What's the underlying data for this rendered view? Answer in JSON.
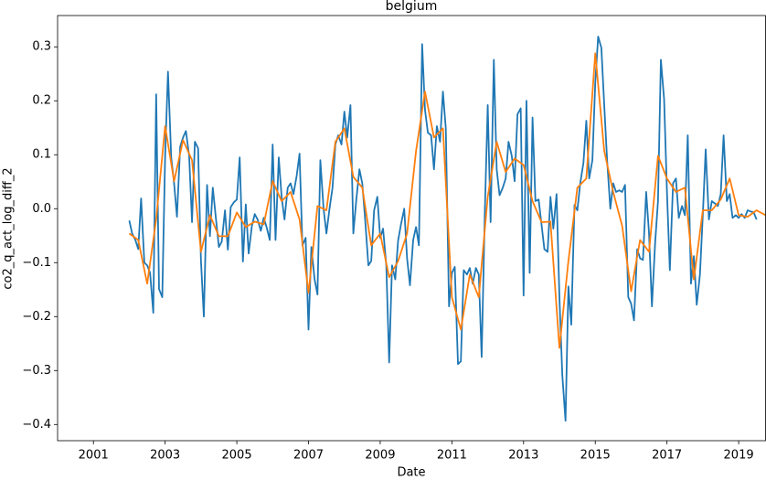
{
  "chart_data": {
    "type": "line",
    "title": "belgium",
    "x_label": "Date",
    "y_label": "co2_q_act_log_diff_2",
    "xlim": [
      2000,
      2019.75
    ],
    "ylim": [
      -0.43,
      0.358
    ],
    "xticks": [
      2001,
      2003,
      2005,
      2007,
      2009,
      2011,
      2013,
      2015,
      2017,
      2019
    ],
    "yticks": [
      {
        "value": -0.4,
        "label": "−0.4"
      },
      {
        "value": -0.3,
        "label": "−0.3"
      },
      {
        "value": -0.2,
        "label": "−0.2"
      },
      {
        "value": -0.1,
        "label": "−0.1"
      },
      {
        "value": 0.0,
        "label": "0.0"
      },
      0.1,
      0.2,
      0.3
    ],
    "grid": false,
    "series": [
      {
        "color": "#1f77b4",
        "x": [
          2002,
          2002.08,
          2002.17,
          2002.25,
          2002.33,
          2002.42,
          2002.5,
          2002.58,
          2002.67,
          2002.75,
          2002.83,
          2002.92,
          2003,
          2003.08,
          2003.17,
          2003.25,
          2003.33,
          2003.42,
          2003.5,
          2003.58,
          2003.67,
          2003.75,
          2003.83,
          2003.92,
          2004,
          2004.08,
          2004.17,
          2004.25,
          2004.33,
          2004.42,
          2004.5,
          2004.58,
          2004.67,
          2004.75,
          2004.83,
          2004.92,
          2005,
          2005.08,
          2005.17,
          2005.25,
          2005.33,
          2005.42,
          2005.5,
          2005.58,
          2005.67,
          2005.75,
          2005.83,
          2005.92,
          2006,
          2006.08,
          2006.17,
          2006.25,
          2006.33,
          2006.42,
          2006.5,
          2006.58,
          2006.67,
          2006.75,
          2006.83,
          2006.92,
          2007,
          2007.08,
          2007.17,
          2007.25,
          2007.33,
          2007.42,
          2007.5,
          2007.58,
          2007.67,
          2007.75,
          2007.83,
          2007.92,
          2008,
          2008.08,
          2008.17,
          2008.25,
          2008.33,
          2008.42,
          2008.5,
          2008.58,
          2008.67,
          2008.75,
          2008.83,
          2008.92,
          2009,
          2009.08,
          2009.17,
          2009.25,
          2009.33,
          2009.42,
          2009.5,
          2009.58,
          2009.67,
          2009.75,
          2009.83,
          2009.92,
          2010,
          2010.08,
          2010.17,
          2010.25,
          2010.33,
          2010.42,
          2010.5,
          2010.58,
          2010.67,
          2010.75,
          2010.83,
          2010.92,
          2011,
          2011.08,
          2011.17,
          2011.25,
          2011.33,
          2011.42,
          2011.5,
          2011.58,
          2011.67,
          2011.75,
          2011.83,
          2011.92,
          2012,
          2012.08,
          2012.17,
          2012.25,
          2012.33,
          2012.42,
          2012.5,
          2012.58,
          2012.67,
          2012.75,
          2012.83,
          2012.92,
          2013,
          2013.08,
          2013.17,
          2013.25,
          2013.33,
          2013.42,
          2013.5,
          2013.58,
          2013.67,
          2013.75,
          2013.83,
          2013.92,
          2014,
          2014.08,
          2014.17,
          2014.25,
          2014.33,
          2014.42,
          2014.5,
          2014.58,
          2014.67,
          2014.75,
          2014.83,
          2014.92,
          2015,
          2015.08,
          2015.17,
          2015.25,
          2015.33,
          2015.42,
          2015.5,
          2015.58,
          2015.67,
          2015.75,
          2015.83,
          2015.92,
          2016,
          2016.08,
          2016.17,
          2016.25,
          2016.33,
          2016.42,
          2016.5,
          2016.58,
          2016.67,
          2016.75,
          2016.83,
          2016.92,
          2017,
          2017.08,
          2017.17,
          2017.25,
          2017.33,
          2017.42,
          2017.5,
          2017.58,
          2017.67,
          2017.75,
          2017.83,
          2017.92,
          2018,
          2018.08,
          2018.17,
          2018.25,
          2018.33,
          2018.42,
          2018.5,
          2018.58,
          2018.67,
          2018.75,
          2018.83,
          2018.92,
          2019,
          2019.08,
          2019.17,
          2019.25,
          2019.33,
          2019.42,
          2019.5
        ],
        "values": [
          -0.022,
          -0.046,
          -0.058,
          -0.075,
          0.019,
          -0.1,
          -0.105,
          -0.119,
          -0.193,
          0.212,
          -0.149,
          -0.164,
          0.098,
          0.254,
          0.095,
          0.047,
          -0.015,
          0.115,
          0.132,
          0.144,
          0.098,
          -0.025,
          0.124,
          0.112,
          -0.097,
          -0.2,
          0.044,
          -0.051,
          0.039,
          -0.02,
          -0.071,
          -0.061,
          -0.003,
          -0.076,
          0.003,
          0.012,
          0.017,
          0.095,
          -0.098,
          0.008,
          -0.083,
          -0.032,
          -0.01,
          -0.02,
          -0.041,
          -0.017,
          -0.034,
          -0.058,
          0.119,
          -0.058,
          0.095,
          0.022,
          -0.02,
          0.039,
          0.047,
          0.027,
          0.061,
          0.102,
          -0.068,
          -0.054,
          -0.224,
          -0.071,
          -0.131,
          -0.159,
          0.09,
          0,
          -0.046,
          -0.003,
          0.039,
          0.119,
          0.136,
          0.119,
          0.18,
          0.132,
          0.192,
          -0.046,
          0.014,
          0.073,
          0.047,
          -0.02,
          -0.105,
          -0.097,
          -0.003,
          0.022,
          -0.054,
          -0.037,
          -0.105,
          -0.285,
          -0.105,
          -0.131,
          -0.059,
          -0.029,
          0,
          -0.092,
          -0.142,
          -0.058,
          -0.034,
          -0.068,
          0.305,
          0.183,
          0.141,
          0.136,
          0.073,
          0.153,
          0.124,
          0.217,
          0.149,
          -0.181,
          -0.119,
          -0.108,
          -0.288,
          -0.283,
          -0.114,
          -0.122,
          -0.11,
          -0.139,
          -0.11,
          -0.122,
          -0.275,
          -0.003,
          0.192,
          -0.025,
          0.276,
          0.073,
          0.025,
          0.039,
          0.056,
          0.124,
          0.098,
          0.051,
          0.175,
          0.186,
          -0.161,
          0.2,
          -0.119,
          0.169,
          0.014,
          0.017,
          -0.029,
          -0.075,
          -0.08,
          0.022,
          -0.037,
          0.027,
          -0.164,
          -0.308,
          -0.393,
          -0.144,
          -0.215,
          0.007,
          -0.003,
          0.047,
          0.085,
          0.163,
          0.056,
          0.09,
          0.234,
          0.319,
          0.298,
          0.192,
          0.09,
          0,
          0.047,
          0.031,
          0.034,
          0.031,
          0.044,
          -0.164,
          -0.176,
          -0.207,
          -0.075,
          -0.092,
          -0.095,
          0.031,
          -0.046,
          -0.181,
          -0.063,
          0.014,
          0.276,
          0.203,
          0.031,
          -0.114,
          0.047,
          0.056,
          -0.017,
          0.005,
          -0.012,
          0.136,
          -0.139,
          -0.088,
          -0.178,
          -0.122,
          -0.012,
          0.11,
          -0.02,
          0.014,
          0.01,
          0.005,
          0.027,
          0.136,
          0.014,
          0.027,
          -0.017,
          -0.012,
          -0.017,
          -0.01,
          -0.017,
          -0.003,
          -0.005,
          -0.007,
          -0.02
        ]
      },
      {
        "color": "#ff7f0e",
        "x": [
          2002,
          2002.25,
          2002.5,
          2002.75,
          2003,
          2003.25,
          2003.5,
          2003.75,
          2004,
          2004.25,
          2004.5,
          2004.75,
          2005,
          2005.25,
          2005.5,
          2005.75,
          2006,
          2006.25,
          2006.5,
          2006.75,
          2007,
          2007.25,
          2007.5,
          2007.75,
          2008,
          2008.25,
          2008.5,
          2008.75,
          2009,
          2009.25,
          2009.5,
          2009.75,
          2010,
          2010.25,
          2010.5,
          2010.75,
          2011,
          2011.25,
          2011.5,
          2011.75,
          2012,
          2012.25,
          2012.5,
          2012.75,
          2013,
          2013.25,
          2013.5,
          2013.75,
          2014,
          2014.25,
          2014.5,
          2014.75,
          2015,
          2015.25,
          2015.5,
          2015.75,
          2016,
          2016.25,
          2016.5,
          2016.75,
          2017,
          2017.25,
          2017.5,
          2017.75,
          2018,
          2018.25,
          2018.5,
          2018.75,
          2019,
          2019.25,
          2019.5,
          2019.75
        ],
        "values": [
          -0.046,
          -0.058,
          -0.139,
          -0.02,
          0.153,
          0.051,
          0.127,
          0.09,
          -0.08,
          -0.012,
          -0.051,
          -0.051,
          -0.007,
          -0.034,
          -0.024,
          -0.029,
          0.051,
          0.014,
          0.031,
          -0.02,
          -0.156,
          0.005,
          -0.003,
          0.124,
          0.149,
          0.059,
          0.039,
          -0.068,
          -0.046,
          -0.127,
          -0.097,
          -0.046,
          0.107,
          0.217,
          0.132,
          0.149,
          -0.164,
          -0.224,
          -0.122,
          -0.164,
          0.022,
          0.124,
          0.068,
          0.093,
          0.081,
          0.014,
          -0.025,
          -0.024,
          -0.258,
          -0.097,
          0.039,
          0.056,
          0.288,
          0.107,
          0.031,
          -0.032,
          -0.153,
          -0.058,
          -0.08,
          0.098,
          0.056,
          0.031,
          0.039,
          -0.131,
          -0.003,
          -0.003,
          0.017,
          0.056,
          -0.012,
          -0.015,
          -0.003,
          -0.012
        ]
      }
    ]
  }
}
